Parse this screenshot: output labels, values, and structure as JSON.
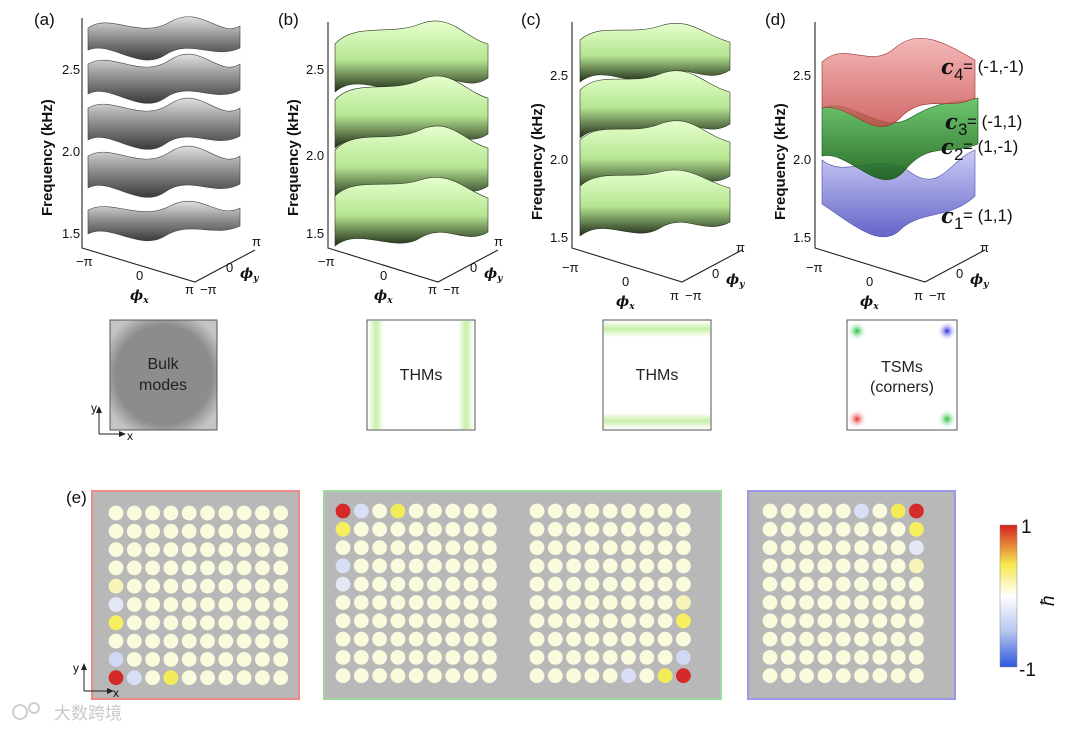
{
  "panel_labels": {
    "a": "(a)",
    "b": "(b)",
    "c": "(c)",
    "d": "(d)",
    "e": "(e)"
  },
  "axes": {
    "ylabel": "Frequency (kHz)",
    "yticks": [
      "2.5",
      "2.0",
      "1.5"
    ],
    "x_ticks": [
      "−π",
      "0",
      "π"
    ],
    "y_ticks": [
      "−π",
      "0",
      "π"
    ],
    "phi_x": "ϕ",
    "phi_x_sub": "x",
    "phi_y": "ϕ",
    "phi_y_sub": "y"
  },
  "boxes": {
    "a": {
      "line1": "Bulk",
      "line2": "modes"
    },
    "b": {
      "line1": "THMs"
    },
    "c": {
      "line1": "THMs"
    },
    "d": {
      "line1": "TSMs",
      "line2": "(corners)"
    }
  },
  "small_axes": {
    "y": "y",
    "x": "x"
  },
  "chern": [
    {
      "c": "c",
      "sub": "4",
      "value": "= (-1,-1)"
    },
    {
      "c": "c",
      "sub": "3",
      "value": "= (-1,1)"
    },
    {
      "c": "c",
      "sub": "2",
      "value": "= (1,-1)"
    },
    {
      "c": "c",
      "sub": "1",
      "value": "= (1,1)"
    }
  ],
  "colorbar": {
    "max": "1",
    "min": "-1",
    "label": "ħ"
  },
  "colors": {
    "surface_gray": "#8c8c8c",
    "surface_green": "#c6f3a0",
    "band4_red": "#e06a6a",
    "band3_green": "#3aa33a",
    "band1_blue": "#7070d8",
    "frame_red": "#f08a8a",
    "frame_green": "#9fd89f",
    "frame_blue": "#9a9ae8",
    "site_default": "#fafadc"
  },
  "watermark": "大数跨境",
  "lattices": [
    {
      "cols": 10,
      "rows": 10,
      "special": [
        [
          0,
          9,
          "#d42a2a"
        ],
        [
          1,
          9,
          "#d8def4"
        ],
        [
          3,
          9,
          "#f2ec5a"
        ],
        [
          0,
          8,
          "#d0d8f4"
        ],
        [
          0,
          6,
          "#f6f060"
        ],
        [
          0,
          5,
          "#e4e8f4"
        ],
        [
          0,
          4,
          "#f6f4b8"
        ]
      ]
    },
    {
      "cols": 9,
      "rows": 10,
      "special": [
        [
          0,
          0,
          "#d42a2a"
        ],
        [
          1,
          0,
          "#d8def4"
        ],
        [
          3,
          0,
          "#f2ec5a"
        ],
        [
          0,
          1,
          "#f6f060"
        ],
        [
          0,
          3,
          "#d8def4"
        ],
        [
          0,
          4,
          "#e4e8f4"
        ]
      ]
    },
    {
      "cols": 9,
      "rows": 10,
      "special": [
        [
          8,
          9,
          "#d42a2a"
        ],
        [
          7,
          9,
          "#f2ec5a"
        ],
        [
          5,
          9,
          "#d8def4"
        ],
        [
          8,
          8,
          "#d0d8f4"
        ],
        [
          8,
          6,
          "#f6f060"
        ],
        [
          8,
          5,
          "#f6f4b8"
        ]
      ]
    },
    {
      "cols": 9,
      "rows": 10,
      "special": [
        [
          8,
          0,
          "#d42a2a"
        ],
        [
          7,
          0,
          "#f2ec5a"
        ],
        [
          5,
          0,
          "#d8def4"
        ],
        [
          8,
          1,
          "#f6f060"
        ],
        [
          8,
          2,
          "#e4e8f4"
        ],
        [
          8,
          3,
          "#f6f4b8"
        ]
      ]
    }
  ]
}
